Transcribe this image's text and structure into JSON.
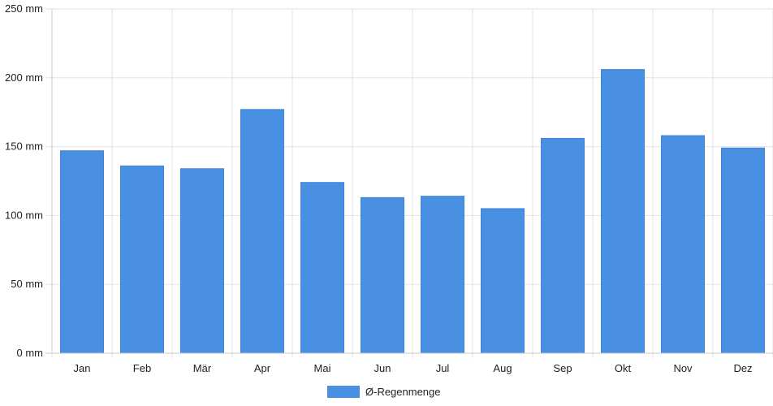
{
  "chart_data": {
    "type": "bar",
    "categories": [
      "Jan",
      "Feb",
      "Mär",
      "Apr",
      "Mai",
      "Jun",
      "Jul",
      "Aug",
      "Sep",
      "Okt",
      "Nov",
      "Dez"
    ],
    "series": [
      {
        "name": "Ø-Regenmenge",
        "values": [
          147,
          136,
          134,
          177,
          124,
          113,
          114,
          105,
          156,
          206,
          158,
          149
        ],
        "color": "#4a90e2"
      }
    ],
    "y_ticks": [
      "0 mm",
      "50 mm",
      "100 mm",
      "150 mm",
      "200 mm",
      "250 mm"
    ],
    "ylim": [
      0,
      250
    ],
    "grid": true,
    "legend_position": "bottom-center"
  }
}
